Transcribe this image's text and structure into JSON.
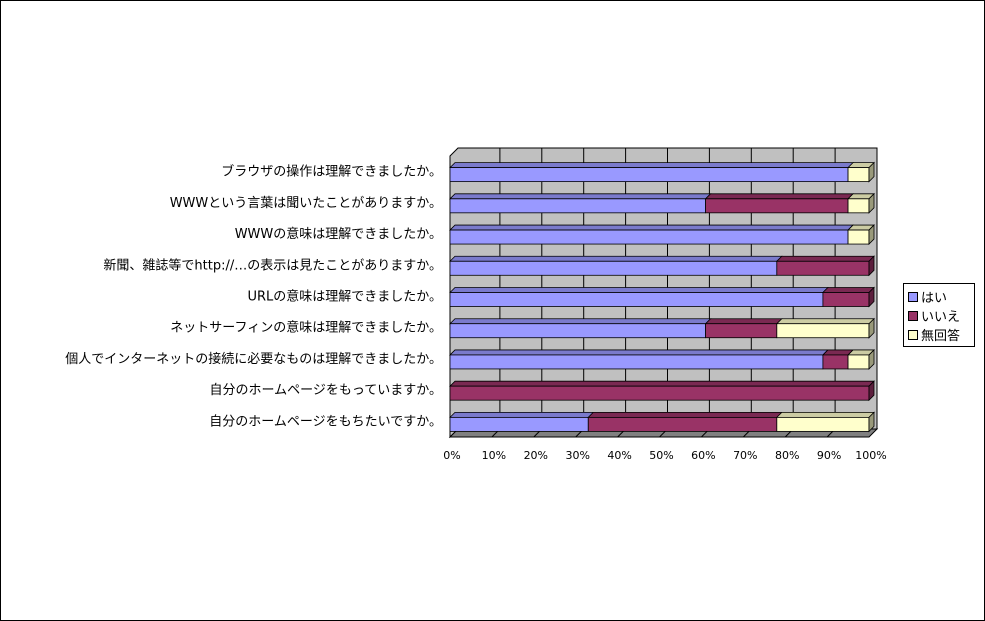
{
  "chart_data": {
    "type": "bar",
    "orientation": "horizontal",
    "stacked": "percent",
    "categories": [
      "ブラウザの操作は理解できましたか。",
      "WWWという言葉は聞いたことがありますか。",
      "WWWの意味は理解できましたか。",
      "新聞、雑誌等でhttp://…の表示は見たことがありますか。",
      "URLの意味は理解できましたか。",
      "ネットサーフィンの意味は理解できましたか。",
      "個人でインターネットの接続に必要なものは理解できましたか。",
      "自分のホームページをもっていますか。",
      "自分のホームページをもちたいですか。"
    ],
    "series": [
      {
        "name": "はい",
        "color": "#9999FF",
        "values": [
          95,
          61,
          95,
          78,
          89,
          61,
          89,
          0,
          33
        ]
      },
      {
        "name": "いいえ",
        "color": "#993366",
        "values": [
          0,
          34,
          0,
          22,
          11,
          17,
          6,
          100,
          45
        ]
      },
      {
        "name": "無回答",
        "color": "#FFFFCC",
        "values": [
          5,
          5,
          5,
          0,
          0,
          22,
          5,
          0,
          22
        ]
      }
    ],
    "xlim": [
      0,
      100
    ],
    "xticks": [
      "0%",
      "10%",
      "20%",
      "30%",
      "40%",
      "50%",
      "60%",
      "70%",
      "80%",
      "90%",
      "100%"
    ],
    "grid": true,
    "legend_position": "right"
  }
}
